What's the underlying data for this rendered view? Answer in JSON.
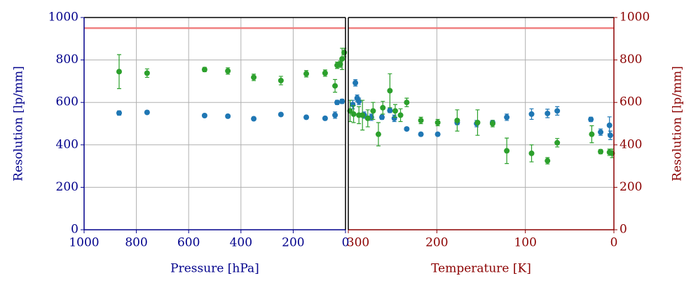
{
  "chart_data": [
    {
      "type": "scatter",
      "x_label": "Pressure [hPa]",
      "y_label": "Resolution [lp/mm]",
      "y_axis_side": "left",
      "axis_color": "#00008b",
      "xlim": [
        1000,
        0
      ],
      "xticks": [
        1000,
        800,
        600,
        400,
        200,
        0
      ],
      "ylim": [
        0,
        1000
      ],
      "yticks": [
        0,
        200,
        400,
        600,
        800,
        1000
      ],
      "grid": true,
      "hline": 950,
      "hline_color": "#f08080",
      "series": [
        {
          "color": "#1f77b4",
          "x": [
            866,
            759,
            539,
            450,
            351,
            247,
            150,
            78,
            40,
            32,
            13
          ],
          "values": [
            550,
            553,
            538,
            535,
            523,
            543,
            530,
            525,
            540,
            600,
            605
          ],
          "errors": [
            10,
            8,
            8,
            8,
            8,
            8,
            8,
            8,
            15,
            10,
            10
          ]
        },
        {
          "color": "#2ca02c",
          "x": [
            866,
            759,
            539,
            450,
            351,
            247,
            150,
            78,
            40,
            32,
            20,
            13,
            5
          ],
          "values": [
            745,
            738,
            755,
            748,
            718,
            703,
            735,
            738,
            678,
            775,
            780,
            805,
            835
          ],
          "errors": [
            80,
            20,
            10,
            15,
            15,
            20,
            15,
            15,
            30,
            15,
            15,
            50,
            20
          ]
        }
      ]
    },
    {
      "type": "scatter",
      "x_label": "Temperature [K]",
      "y_label": "Resolution [lp/mm]",
      "y_axis_side": "right",
      "axis_color": "#8b0000",
      "xlim": [
        300,
        0
      ],
      "xticks": [
        300,
        200,
        100,
        0
      ],
      "ylim": [
        0,
        1000
      ],
      "yticks": [
        0,
        200,
        400,
        600,
        800,
        1000
      ],
      "grid": true,
      "hline": 950,
      "hline_color": "#f08080",
      "series": [
        {
          "color": "#1f77b4",
          "x": [
            295,
            292,
            290,
            288,
            282,
            274,
            262,
            253,
            248,
            234,
            218,
            199,
            177,
            155,
            137,
            121,
            93,
            75,
            64,
            26,
            15,
            5,
            4
          ],
          "values": [
            590,
            692,
            620,
            605,
            540,
            530,
            530,
            562,
            525,
            475,
            450,
            450,
            505,
            500,
            505,
            530,
            545,
            548,
            560,
            520,
            460,
            492,
            445
          ],
          "errors": [
            20,
            15,
            15,
            15,
            15,
            15,
            10,
            10,
            15,
            8,
            8,
            8,
            10,
            15,
            10,
            15,
            25,
            20,
            20,
            10,
            15,
            40,
            20
          ]
        },
        {
          "color": "#2ca02c",
          "x": [
            298,
            294,
            288,
            284,
            278,
            272,
            266,
            261,
            253,
            247,
            241,
            234,
            218,
            199,
            177,
            154,
            137,
            121,
            93,
            75,
            64,
            25,
            15,
            5,
            2
          ],
          "values": [
            560,
            545,
            540,
            540,
            525,
            560,
            450,
            575,
            655,
            560,
            540,
            600,
            515,
            505,
            515,
            505,
            500,
            372,
            360,
            325,
            410,
            450,
            368,
            365,
            360
          ],
          "errors": [
            50,
            40,
            40,
            70,
            40,
            40,
            55,
            30,
            80,
            30,
            30,
            20,
            15,
            15,
            50,
            60,
            15,
            60,
            40,
            15,
            20,
            40,
            10,
            15,
            20
          ]
        }
      ]
    }
  ]
}
